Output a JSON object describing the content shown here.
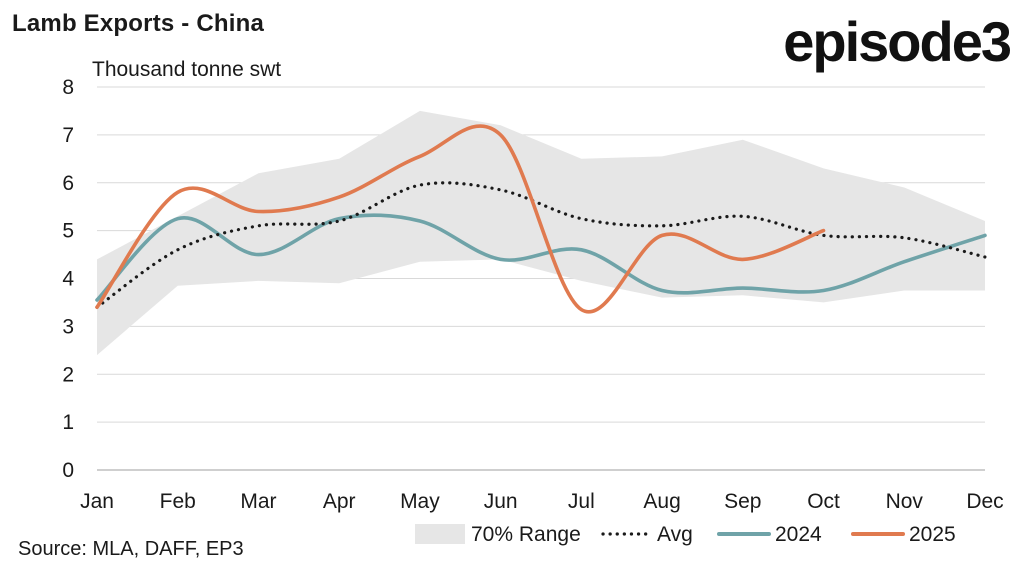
{
  "header": {
    "title": "Lamb Exports - China",
    "logo": "episode3"
  },
  "footer": {
    "source": "Source: MLA, DAFF, EP3"
  },
  "colors": {
    "range": "#e6e6e6",
    "avg": "#1a1a1a",
    "s2024": "#6fa3a8",
    "s2025": "#e07a4f",
    "grid": "#d9d9d9"
  },
  "chart_data": {
    "type": "line",
    "ylabel": "Thousand tonne swt",
    "ylim": [
      0,
      8
    ],
    "yticks": [
      0,
      1,
      2,
      3,
      4,
      5,
      6,
      7,
      8
    ],
    "grid": true,
    "legend_position": "bottom",
    "categories": [
      "Jan",
      "Feb",
      "Mar",
      "Apr",
      "May",
      "Jun",
      "Jul",
      "Aug",
      "Sep",
      "Oct",
      "Nov",
      "Dec"
    ],
    "range_band": {
      "name": "70% Range",
      "upper": [
        4.4,
        5.3,
        6.2,
        6.5,
        7.5,
        7.2,
        6.5,
        6.55,
        6.9,
        6.3,
        5.9,
        5.2
      ],
      "lower": [
        2.4,
        3.85,
        3.95,
        3.9,
        4.35,
        4.4,
        3.95,
        3.6,
        3.65,
        3.5,
        3.75,
        3.75
      ]
    },
    "series": [
      {
        "name": "Avg",
        "style": "dotted",
        "values": [
          3.4,
          4.6,
          5.1,
          5.2,
          5.95,
          5.85,
          5.25,
          5.1,
          5.3,
          4.9,
          4.85,
          4.45
        ]
      },
      {
        "name": "2024",
        "style": "solid",
        "values": [
          3.55,
          5.25,
          4.5,
          5.25,
          5.2,
          4.4,
          4.6,
          3.75,
          3.8,
          3.75,
          4.35,
          4.9
        ]
      },
      {
        "name": "2025",
        "style": "solid",
        "values": [
          3.4,
          5.8,
          5.4,
          5.7,
          6.55,
          7.0,
          3.35,
          4.9,
          4.4,
          5.0,
          null,
          null
        ]
      }
    ]
  }
}
